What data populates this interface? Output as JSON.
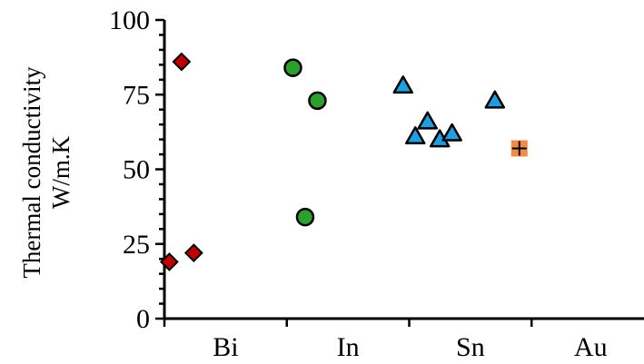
{
  "chart_data": {
    "type": "scatter",
    "ylabel_lines": [
      "Thermal conductivity",
      "W/m.K"
    ],
    "xlabel": "",
    "categories": [
      "Bi",
      "In",
      "Sn",
      "Au"
    ],
    "ylim": [
      0,
      100
    ],
    "yticks": [
      0,
      25,
      50,
      75,
      100
    ],
    "grid": false,
    "series": [
      {
        "marker": "diamond",
        "color": "#c00000",
        "points": [
          {
            "x": 0.14,
            "y": 86
          },
          {
            "x": 0.04,
            "y": 19
          },
          {
            "x": 0.24,
            "y": 22
          }
        ]
      },
      {
        "marker": "circle",
        "color": "#2ca02c",
        "points": [
          {
            "x": 1.05,
            "y": 84
          },
          {
            "x": 1.25,
            "y": 73
          },
          {
            "x": 1.15,
            "y": 34
          }
        ]
      },
      {
        "marker": "triangle",
        "color": "#1f9fe0",
        "points": [
          {
            "x": 1.95,
            "y": 78
          },
          {
            "x": 2.05,
            "y": 61
          },
          {
            "x": 2.15,
            "y": 66
          },
          {
            "x": 2.25,
            "y": 60
          },
          {
            "x": 2.35,
            "y": 62
          },
          {
            "x": 2.7,
            "y": 73
          }
        ]
      },
      {
        "marker": "square-plus",
        "color": "#f08c46",
        "points": [
          {
            "x": 2.9,
            "y": 57
          }
        ]
      }
    ]
  }
}
